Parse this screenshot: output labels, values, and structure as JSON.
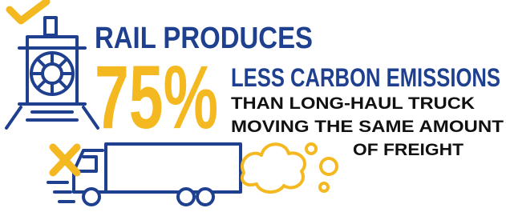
{
  "headline": {
    "line1": "RAIL PRODUCES",
    "figure": "75%",
    "line2": "LESS CARBON EMISSIONS"
  },
  "subtext": [
    "THAN LONG-HAUL TRUCK",
    "MOVING THE SAME AMOUNT",
    "OF FREIGHT"
  ]
}
